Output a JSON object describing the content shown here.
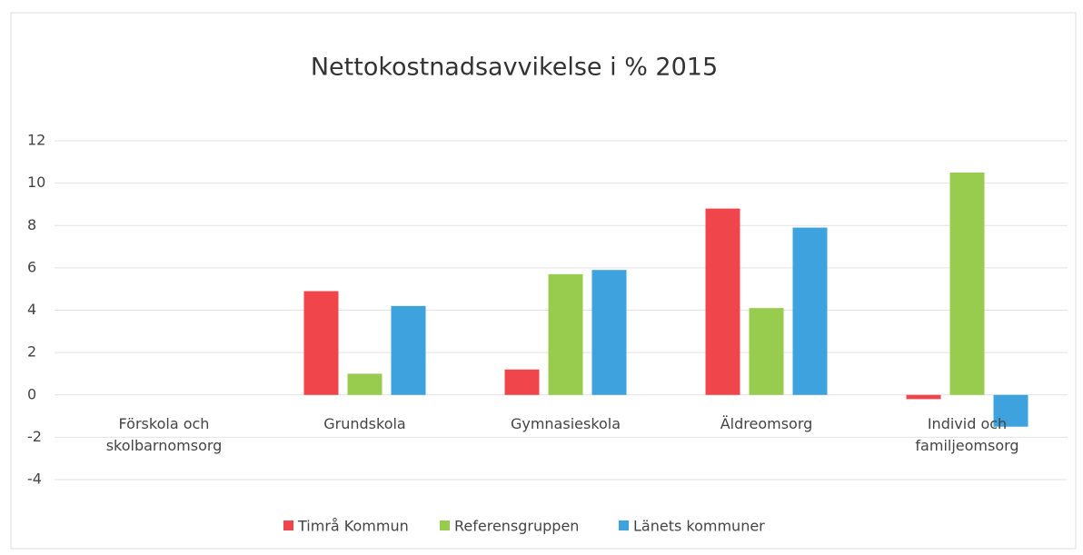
{
  "chart_data": {
    "type": "bar",
    "title": "Nettokostnadsavvikelse i % 2015",
    "categories": [
      "Förskola och skolbarnomsorg",
      "Grundskola",
      "Gymnasieskola",
      "Äldreomsorg",
      "Individ och familjeomsorg"
    ],
    "series": [
      {
        "name": "Timrå Kommun",
        "color": "#f0454a",
        "values": [
          0,
          4.9,
          1.2,
          8.8,
          -0.2
        ]
      },
      {
        "name": "Referensgruppen",
        "color": "#97cc4e",
        "values": [
          0,
          1.0,
          5.7,
          4.1,
          10.5
        ]
      },
      {
        "name": "Länets kommuner",
        "color": "#3ea2df",
        "values": [
          0,
          4.2,
          5.9,
          7.9,
          -1.5
        ]
      }
    ],
    "ylim": [
      -4,
      12
    ],
    "yticks": [
      -4,
      -2,
      0,
      2,
      4,
      6,
      8,
      10,
      12
    ],
    "grid": true,
    "legend": "bottom"
  }
}
